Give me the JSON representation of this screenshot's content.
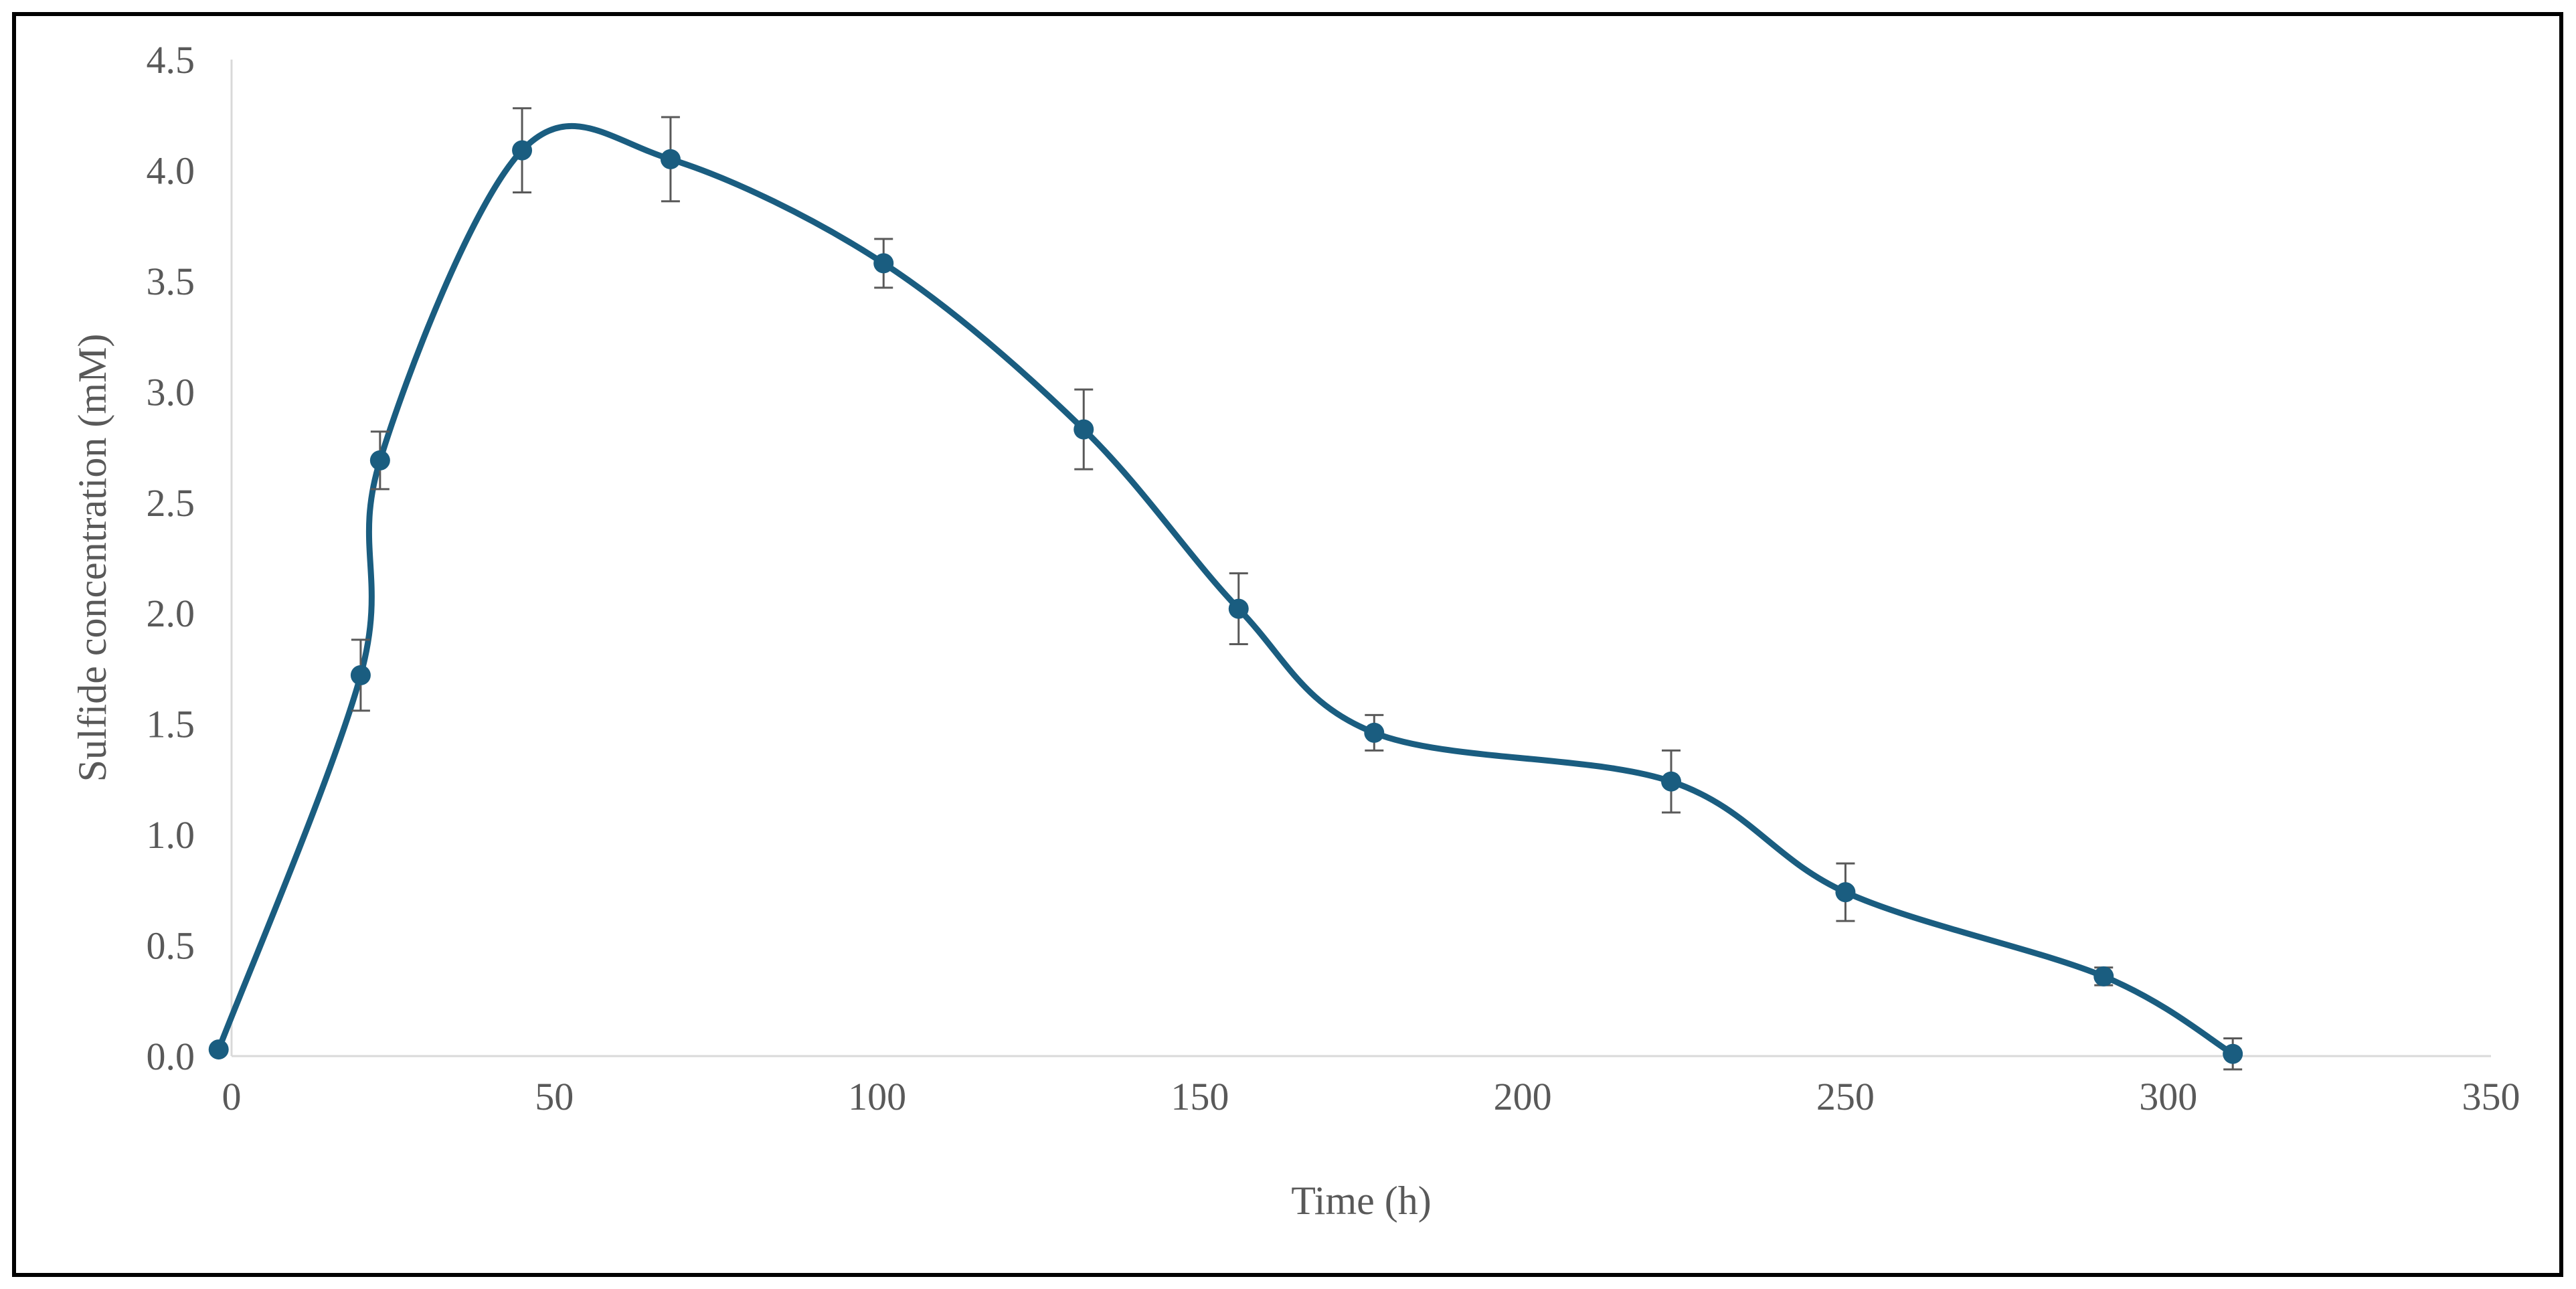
{
  "chart_data": {
    "type": "line",
    "title": "",
    "xlabel": "Time (h)",
    "ylabel": "Sulfide concentration (mM)",
    "xlim": [
      0,
      350
    ],
    "ylim": [
      0,
      4.5
    ],
    "x_ticks": [
      0,
      50,
      100,
      150,
      200,
      250,
      300,
      350
    ],
    "y_ticks": [
      "0.0",
      "0.5",
      "1.0",
      "1.5",
      "2.0",
      "2.5",
      "3.0",
      "3.5",
      "4.0",
      "4.5"
    ],
    "grid": false,
    "legend": "none",
    "smooth": true,
    "series": [
      {
        "color": "#1a5d80",
        "x": [
          -2,
          20,
          23,
          45,
          68,
          101,
          132,
          156,
          177,
          223,
          250,
          290,
          310
        ],
        "y": [
          0.03,
          1.72,
          2.69,
          4.09,
          4.05,
          3.58,
          2.83,
          2.02,
          1.46,
          1.24,
          0.74,
          0.36,
          0.01
        ],
        "error": [
          0.0,
          0.16,
          0.13,
          0.19,
          0.19,
          0.11,
          0.18,
          0.16,
          0.08,
          0.14,
          0.13,
          0.04,
          0.07
        ]
      }
    ]
  }
}
